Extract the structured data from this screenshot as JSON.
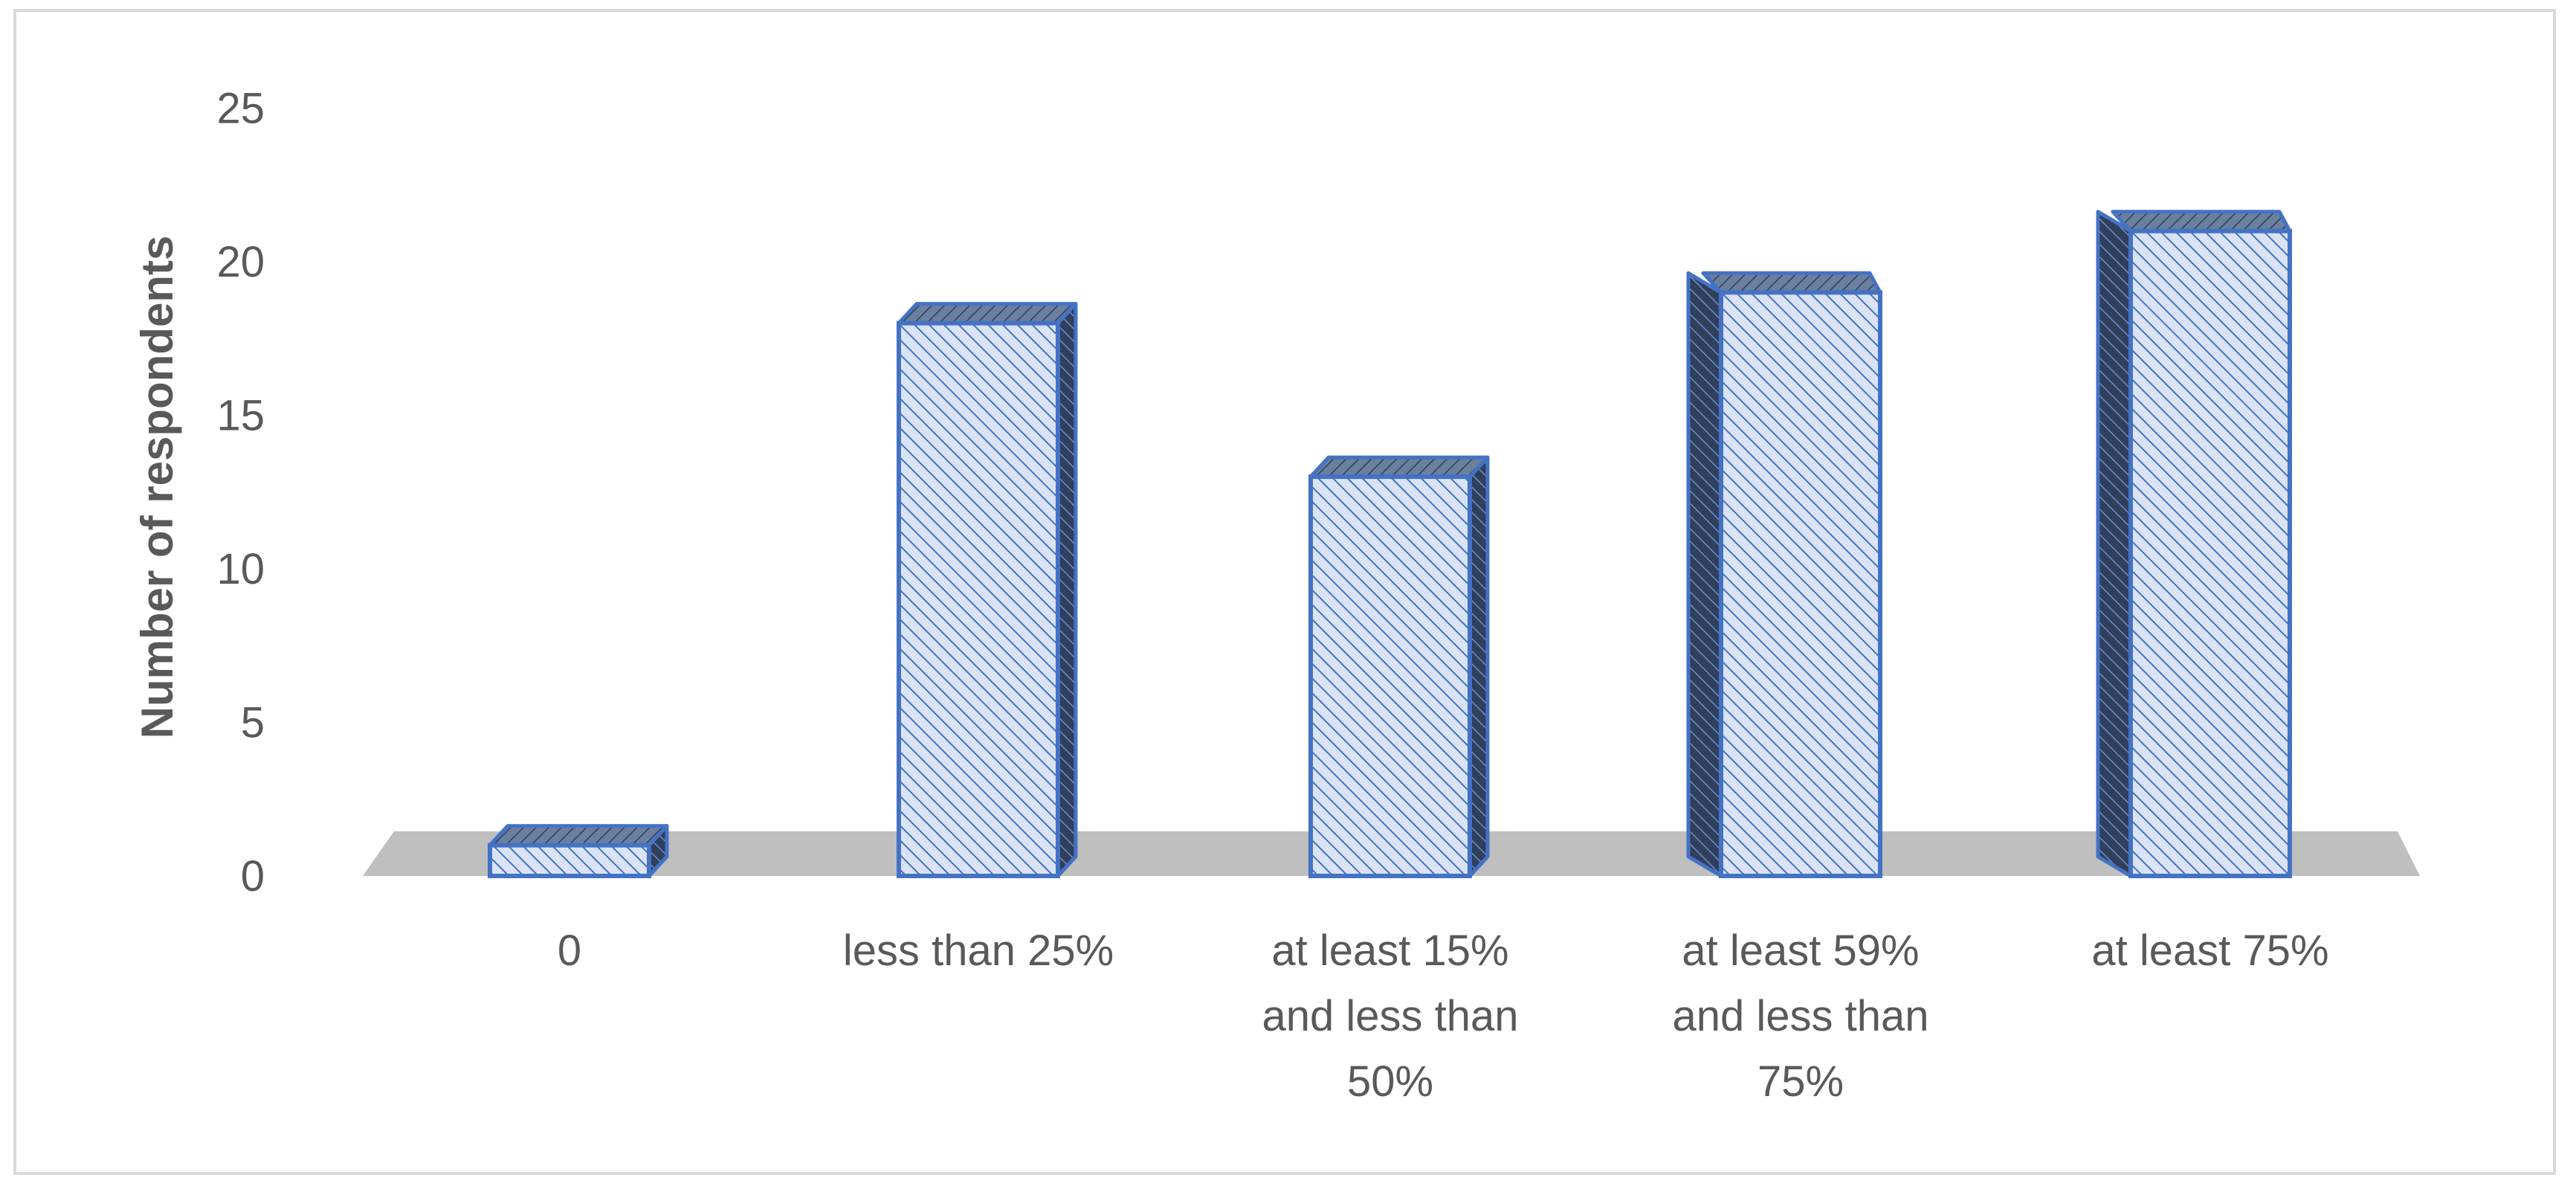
{
  "chart_data": {
    "type": "bar",
    "style": "3d-column",
    "categories": [
      [
        "0"
      ],
      [
        "less than 25%"
      ],
      [
        "at least 15%",
        "and less than",
        "50%"
      ],
      [
        "at least 59%",
        "and less than",
        "75%"
      ],
      [
        "at least 75%"
      ]
    ],
    "values": [
      1,
      18,
      13,
      19,
      21
    ],
    "ylabel": "Number of respondents",
    "xlabel": "",
    "title": "",
    "ylim": [
      0,
      25
    ],
    "yticks": [
      0,
      5,
      10,
      15,
      20,
      25
    ],
    "grid": false,
    "legend": "none"
  },
  "colors": {
    "bar_fill": "#dae3f3",
    "bar_hatch": "#4472c4",
    "bar_edge": "#4472c4",
    "bar_side": "#2f3f5c",
    "floor": "#bfbfbf",
    "text": "#595959",
    "frame": "#d9d9d9"
  }
}
